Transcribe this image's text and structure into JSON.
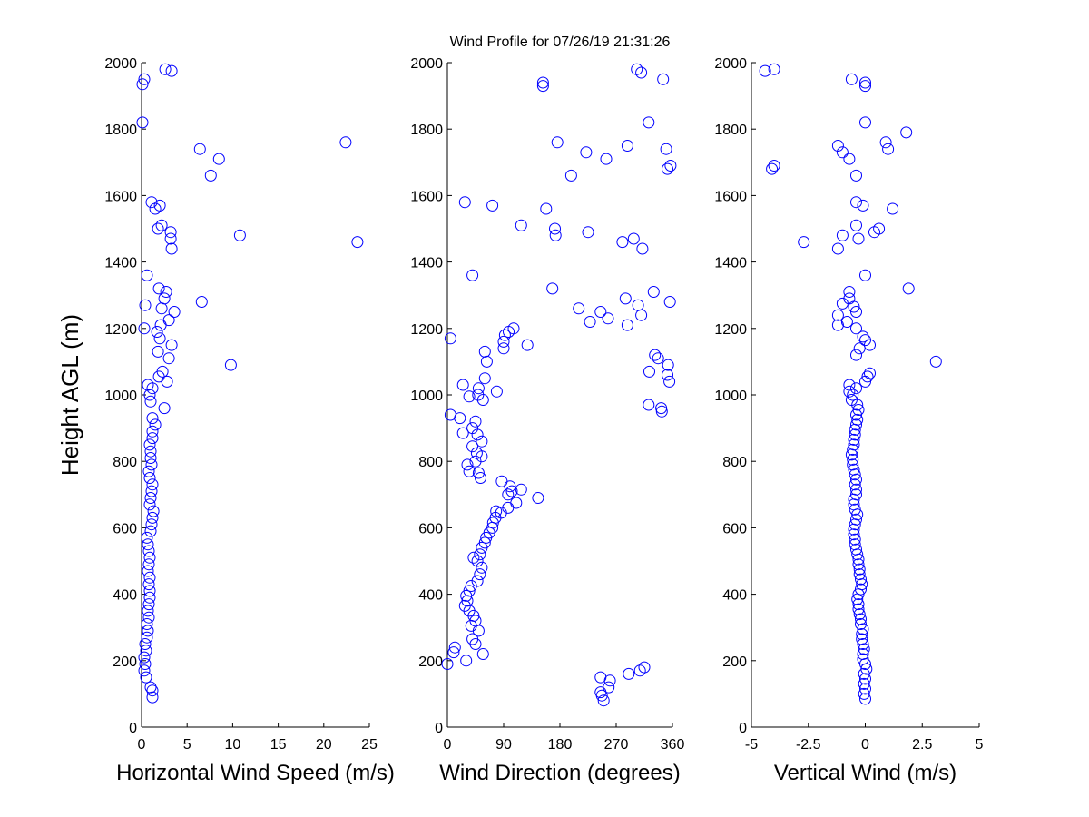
{
  "title": "Wind Profile for  07/26/19 21:31:26",
  "ylabel": "Height AGL (m)",
  "marker_color": "#0000ff",
  "chart_data": [
    {
      "type": "scatter",
      "xlabel": "Horizontal Wind Speed (m/s)",
      "ylabel": "Height AGL (m)",
      "xlim": [
        0,
        25
      ],
      "ylim": [
        0,
        2000
      ],
      "xticks": [
        "0",
        "5",
        "10",
        "15",
        "20",
        "25"
      ],
      "yticks": [
        "0",
        "200",
        "400",
        "600",
        "800",
        "1000",
        "1200",
        "1400",
        "1600",
        "1800",
        "2000"
      ],
      "grid": false,
      "points": [
        [
          1.2,
          90
        ],
        [
          1.2,
          110
        ],
        [
          1.0,
          120
        ],
        [
          0.5,
          150
        ],
        [
          0.3,
          170
        ],
        [
          0.4,
          190
        ],
        [
          0.3,
          210
        ],
        [
          0.5,
          230
        ],
        [
          0.4,
          250
        ],
        [
          0.6,
          270
        ],
        [
          0.7,
          290
        ],
        [
          0.6,
          310
        ],
        [
          0.8,
          330
        ],
        [
          0.7,
          350
        ],
        [
          0.8,
          370
        ],
        [
          0.9,
          390
        ],
        [
          0.9,
          410
        ],
        [
          0.8,
          430
        ],
        [
          0.9,
          450
        ],
        [
          0.7,
          470
        ],
        [
          0.8,
          490
        ],
        [
          0.9,
          510
        ],
        [
          0.8,
          530
        ],
        [
          0.7,
          550
        ],
        [
          0.6,
          570
        ],
        [
          1.0,
          590
        ],
        [
          1.1,
          610
        ],
        [
          1.2,
          630
        ],
        [
          1.3,
          650
        ],
        [
          0.9,
          670
        ],
        [
          1.0,
          690
        ],
        [
          1.1,
          710
        ],
        [
          1.2,
          730
        ],
        [
          0.9,
          750
        ],
        [
          0.8,
          770
        ],
        [
          1.1,
          790
        ],
        [
          1.0,
          810
        ],
        [
          1.0,
          830
        ],
        [
          0.9,
          850
        ],
        [
          1.2,
          870
        ],
        [
          1.2,
          890
        ],
        [
          1.5,
          910
        ],
        [
          1.2,
          930
        ],
        [
          2.5,
          960
        ],
        [
          1.0,
          980
        ],
        [
          0.9,
          1000
        ],
        [
          1.2,
          1020
        ],
        [
          0.7,
          1030
        ],
        [
          2.8,
          1040
        ],
        [
          1.9,
          1055
        ],
        [
          2.3,
          1070
        ],
        [
          9.8,
          1090
        ],
        [
          3.0,
          1110
        ],
        [
          1.8,
          1130
        ],
        [
          3.3,
          1150
        ],
        [
          2.0,
          1170
        ],
        [
          1.7,
          1190
        ],
        [
          0.3,
          1200
        ],
        [
          2.1,
          1210
        ],
        [
          3.0,
          1225
        ],
        [
          3.6,
          1250
        ],
        [
          2.2,
          1260
        ],
        [
          0.4,
          1270
        ],
        [
          6.6,
          1280
        ],
        [
          2.5,
          1290
        ],
        [
          2.7,
          1310
        ],
        [
          1.9,
          1320
        ],
        [
          0.6,
          1360
        ],
        [
          3.3,
          1440
        ],
        [
          23.7,
          1460
        ],
        [
          3.2,
          1470
        ],
        [
          10.8,
          1480
        ],
        [
          3.2,
          1490
        ],
        [
          1.8,
          1500
        ],
        [
          2.2,
          1510
        ],
        [
          1.5,
          1560
        ],
        [
          2.0,
          1570
        ],
        [
          1.1,
          1580
        ],
        [
          7.6,
          1660
        ],
        [
          8.5,
          1710
        ],
        [
          6.4,
          1740
        ],
        [
          22.4,
          1760
        ],
        [
          0.1,
          1820
        ],
        [
          0.1,
          1935
        ],
        [
          0.3,
          1950
        ],
        [
          3.3,
          1975
        ],
        [
          2.6,
          1980
        ]
      ]
    },
    {
      "type": "scatter",
      "xlabel": "Wind Direction (degrees)",
      "ylabel": "",
      "xlim": [
        0,
        360
      ],
      "ylim": [
        0,
        2000
      ],
      "xticks": [
        "0",
        "90",
        "180",
        "270",
        "360"
      ],
      "yticks": [
        "0",
        "200",
        "400",
        "600",
        "800",
        "1000",
        "1200",
        "1400",
        "1600",
        "1800",
        "2000"
      ],
      "grid": false,
      "points": [
        [
          250,
          80
        ],
        [
          247,
          95
        ],
        [
          245,
          105
        ],
        [
          258,
          120
        ],
        [
          260,
          140
        ],
        [
          245,
          150
        ],
        [
          290,
          160
        ],
        [
          308,
          170
        ],
        [
          315,
          180
        ],
        [
          0,
          190
        ],
        [
          30,
          200
        ],
        [
          57,
          220
        ],
        [
          10,
          225
        ],
        [
          12,
          240
        ],
        [
          45,
          250
        ],
        [
          40,
          265
        ],
        [
          50,
          290
        ],
        [
          38,
          305
        ],
        [
          45,
          320
        ],
        [
          42,
          335
        ],
        [
          35,
          350
        ],
        [
          28,
          365
        ],
        [
          32,
          380
        ],
        [
          30,
          395
        ],
        [
          35,
          410
        ],
        [
          38,
          425
        ],
        [
          48,
          440
        ],
        [
          52,
          460
        ],
        [
          55,
          480
        ],
        [
          48,
          500
        ],
        [
          42,
          510
        ],
        [
          52,
          520
        ],
        [
          55,
          540
        ],
        [
          60,
          555
        ],
        [
          62,
          570
        ],
        [
          67,
          585
        ],
        [
          72,
          600
        ],
        [
          73,
          615
        ],
        [
          77,
          630
        ],
        [
          86,
          645
        ],
        [
          78,
          650
        ],
        [
          97,
          660
        ],
        [
          110,
          675
        ],
        [
          145,
          690
        ],
        [
          97,
          700
        ],
        [
          103,
          710
        ],
        [
          118,
          715
        ],
        [
          100,
          725
        ],
        [
          87,
          740
        ],
        [
          53,
          750
        ],
        [
          50,
          765
        ],
        [
          35,
          770
        ],
        [
          32,
          790
        ],
        [
          45,
          800
        ],
        [
          55,
          815
        ],
        [
          47,
          825
        ],
        [
          40,
          845
        ],
        [
          55,
          860
        ],
        [
          48,
          880
        ],
        [
          25,
          885
        ],
        [
          40,
          900
        ],
        [
          45,
          920
        ],
        [
          20,
          930
        ],
        [
          5,
          940
        ],
        [
          57,
          985
        ],
        [
          35,
          995
        ],
        [
          49,
          1000
        ],
        [
          79,
          1010
        ],
        [
          50,
          1020
        ],
        [
          25,
          1030
        ],
        [
          60,
          1050
        ],
        [
          322,
          970
        ],
        [
          343,
          950
        ],
        [
          342,
          960
        ],
        [
          355,
          1040
        ],
        [
          352,
          1060
        ],
        [
          323,
          1070
        ],
        [
          353,
          1090
        ],
        [
          63,
          1100
        ],
        [
          337,
          1110
        ],
        [
          332,
          1120
        ],
        [
          60,
          1130
        ],
        [
          90,
          1140
        ],
        [
          128,
          1150
        ],
        [
          90,
          1160
        ],
        [
          5,
          1170
        ],
        [
          92,
          1180
        ],
        [
          98,
          1190
        ],
        [
          106,
          1200
        ],
        [
          288,
          1210
        ],
        [
          228,
          1220
        ],
        [
          257,
          1230
        ],
        [
          310,
          1240
        ],
        [
          245,
          1250
        ],
        [
          210,
          1260
        ],
        [
          305,
          1270
        ],
        [
          356,
          1280
        ],
        [
          285,
          1290
        ],
        [
          330,
          1310
        ],
        [
          168,
          1320
        ],
        [
          40,
          1360
        ],
        [
          312,
          1440
        ],
        [
          280,
          1460
        ],
        [
          298,
          1470
        ],
        [
          173,
          1480
        ],
        [
          225,
          1490
        ],
        [
          172,
          1500
        ],
        [
          118,
          1510
        ],
        [
          158,
          1560
        ],
        [
          72,
          1570
        ],
        [
          28,
          1580
        ],
        [
          198,
          1660
        ],
        [
          352,
          1680
        ],
        [
          357,
          1690
        ],
        [
          254,
          1710
        ],
        [
          222,
          1730
        ],
        [
          350,
          1740
        ],
        [
          288,
          1750
        ],
        [
          176,
          1760
        ],
        [
          322,
          1820
        ],
        [
          153,
          1930
        ],
        [
          153,
          1940
        ],
        [
          345,
          1950
        ],
        [
          310,
          1970
        ],
        [
          303,
          1980
        ]
      ]
    },
    {
      "type": "scatter",
      "xlabel": "Vertical Wind (m/s)",
      "ylabel": "",
      "xlim": [
        -5,
        5
      ],
      "ylim": [
        0,
        2000
      ],
      "xticks": [
        "-5",
        "-2.5",
        "0",
        "2.5",
        "5"
      ],
      "yticks": [
        "0",
        "200",
        "400",
        "600",
        "800",
        "1000",
        "1200",
        "1400",
        "1600",
        "1800",
        "2000"
      ],
      "grid": false,
      "points": [
        [
          0.0,
          85
        ],
        [
          -0.05,
          100
        ],
        [
          0.0,
          115
        ],
        [
          -0.05,
          130
        ],
        [
          0.0,
          145
        ],
        [
          -0.05,
          160
        ],
        [
          0.05,
          175
        ],
        [
          0.0,
          190
        ],
        [
          -0.1,
          205
        ],
        [
          -0.1,
          220
        ],
        [
          -0.05,
          235
        ],
        [
          -0.1,
          250
        ],
        [
          -0.15,
          265
        ],
        [
          -0.15,
          280
        ],
        [
          -0.1,
          295
        ],
        [
          -0.2,
          310
        ],
        [
          -0.2,
          325
        ],
        [
          -0.25,
          340
        ],
        [
          -0.3,
          355
        ],
        [
          -0.3,
          370
        ],
        [
          -0.35,
          385
        ],
        [
          -0.3,
          400
        ],
        [
          -0.2,
          415
        ],
        [
          -0.15,
          430
        ],
        [
          -0.2,
          445
        ],
        [
          -0.25,
          460
        ],
        [
          -0.25,
          475
        ],
        [
          -0.3,
          490
        ],
        [
          -0.3,
          505
        ],
        [
          -0.35,
          520
        ],
        [
          -0.4,
          535
        ],
        [
          -0.45,
          550
        ],
        [
          -0.45,
          565
        ],
        [
          -0.5,
          580
        ],
        [
          -0.5,
          595
        ],
        [
          -0.45,
          610
        ],
        [
          -0.4,
          625
        ],
        [
          -0.35,
          640
        ],
        [
          -0.45,
          655
        ],
        [
          -0.5,
          670
        ],
        [
          -0.5,
          685
        ],
        [
          -0.4,
          700
        ],
        [
          -0.4,
          715
        ],
        [
          -0.45,
          730
        ],
        [
          -0.4,
          745
        ],
        [
          -0.45,
          760
        ],
        [
          -0.5,
          775
        ],
        [
          -0.55,
          790
        ],
        [
          -0.55,
          805
        ],
        [
          -0.6,
          820
        ],
        [
          -0.55,
          835
        ],
        [
          -0.5,
          850
        ],
        [
          -0.5,
          865
        ],
        [
          -0.45,
          880
        ],
        [
          -0.45,
          895
        ],
        [
          -0.4,
          910
        ],
        [
          -0.35,
          925
        ],
        [
          -0.4,
          940
        ],
        [
          -0.3,
          955
        ],
        [
          -0.35,
          970
        ],
        [
          -0.6,
          985
        ],
        [
          -0.55,
          1000
        ],
        [
          -0.7,
          1010
        ],
        [
          -0.4,
          1020
        ],
        [
          -0.7,
          1030
        ],
        [
          0.0,
          1040
        ],
        [
          0.1,
          1055
        ],
        [
          0.2,
          1065
        ],
        [
          3.1,
          1100
        ],
        [
          -0.4,
          1120
        ],
        [
          -0.25,
          1140
        ],
        [
          0.2,
          1150
        ],
        [
          0.0,
          1165
        ],
        [
          -0.1,
          1175
        ],
        [
          -0.4,
          1200
        ],
        [
          -1.2,
          1210
        ],
        [
          -0.8,
          1220
        ],
        [
          -1.2,
          1240
        ],
        [
          -0.4,
          1250
        ],
        [
          -0.5,
          1265
        ],
        [
          -1.0,
          1275
        ],
        [
          -0.7,
          1290
        ],
        [
          -0.7,
          1310
        ],
        [
          1.9,
          1320
        ],
        [
          0.0,
          1360
        ],
        [
          -1.2,
          1440
        ],
        [
          -2.7,
          1460
        ],
        [
          -0.3,
          1470
        ],
        [
          -1.0,
          1480
        ],
        [
          0.4,
          1490
        ],
        [
          0.6,
          1500
        ],
        [
          -0.4,
          1510
        ],
        [
          1.2,
          1560
        ],
        [
          -0.1,
          1570
        ],
        [
          -0.4,
          1580
        ],
        [
          -0.4,
          1660
        ],
        [
          -4.1,
          1680
        ],
        [
          -4.0,
          1690
        ],
        [
          -0.7,
          1710
        ],
        [
          -1.0,
          1730
        ],
        [
          1.0,
          1740
        ],
        [
          -1.2,
          1750
        ],
        [
          0.9,
          1760
        ],
        [
          1.8,
          1790
        ],
        [
          0.0,
          1820
        ],
        [
          0.0,
          1930
        ],
        [
          0.0,
          1940
        ],
        [
          -0.6,
          1950
        ],
        [
          -4.4,
          1975
        ],
        [
          -4.0,
          1980
        ]
      ]
    }
  ]
}
